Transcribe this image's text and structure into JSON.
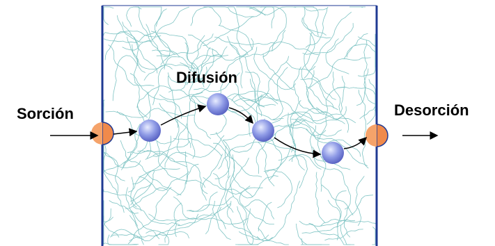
{
  "labels": {
    "sorption": "Sorción",
    "diffusion": "Difusión",
    "desorption": "Desorción"
  }
}
